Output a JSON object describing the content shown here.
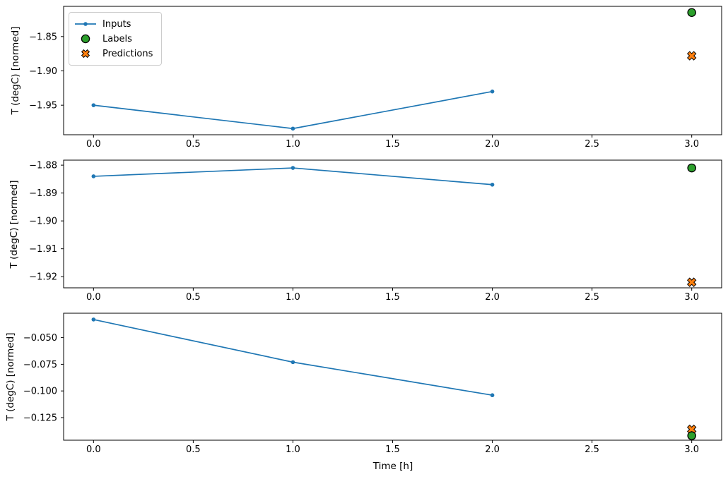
{
  "figure": {
    "background": "#ffffff",
    "axes_edge_color": "#000000",
    "xlabel": "Time [h]"
  },
  "legend": {
    "position": "upper left",
    "entries": [
      {
        "label": "Inputs",
        "marker": "line-with-dot",
        "color": "#1f77b4"
      },
      {
        "label": "Labels",
        "marker": "filled-circle",
        "color": "#2ca02c",
        "edge_color": "#000000"
      },
      {
        "label": "Predictions",
        "marker": "filled-x",
        "color": "#ff7f0e",
        "edge_color": "#000000"
      }
    ]
  },
  "chart_data": [
    {
      "type": "line",
      "title": "",
      "ylabel": "T (degC) [normed]",
      "xlabel": "",
      "grid": false,
      "xlim": [
        -0.15,
        3.15
      ],
      "ylim": [
        -1.993,
        -1.806
      ],
      "xticks": [
        {
          "v": 0.0,
          "label": "0.0"
        },
        {
          "v": 0.5,
          "label": "0.5"
        },
        {
          "v": 1.0,
          "label": "1.0"
        },
        {
          "v": 1.5,
          "label": "1.5"
        },
        {
          "v": 2.0,
          "label": "2.0"
        },
        {
          "v": 2.5,
          "label": "2.5"
        },
        {
          "v": 3.0,
          "label": "3.0"
        }
      ],
      "yticks": [
        {
          "v": -1.85,
          "label": "−1.85"
        },
        {
          "v": -1.9,
          "label": "−1.90"
        },
        {
          "v": -1.95,
          "label": "−1.95"
        }
      ],
      "series": [
        {
          "name": "Inputs",
          "color": "#1f77b4",
          "marker": "dot",
          "line": true,
          "x": [
            0,
            1,
            2
          ],
          "y": [
            -1.95,
            -1.984,
            -1.93
          ]
        }
      ],
      "points": [
        {
          "name": "Labels",
          "marker": "circle",
          "color": "#2ca02c",
          "x": 3,
          "y": -1.815
        },
        {
          "name": "Predictions",
          "marker": "X",
          "color": "#ff7f0e",
          "x": 3,
          "y": -1.878
        }
      ]
    },
    {
      "type": "line",
      "title": "",
      "ylabel": "T (degC) [normed]",
      "xlabel": "",
      "grid": false,
      "xlim": [
        -0.15,
        3.15
      ],
      "ylim": [
        -1.924,
        -1.8782
      ],
      "xticks": [
        {
          "v": 0.0,
          "label": "0.0"
        },
        {
          "v": 0.5,
          "label": "0.5"
        },
        {
          "v": 1.0,
          "label": "1.0"
        },
        {
          "v": 1.5,
          "label": "1.5"
        },
        {
          "v": 2.0,
          "label": "2.0"
        },
        {
          "v": 2.5,
          "label": "2.5"
        },
        {
          "v": 3.0,
          "label": "3.0"
        }
      ],
      "yticks": [
        {
          "v": -1.88,
          "label": "−1.88"
        },
        {
          "v": -1.89,
          "label": "−1.89"
        },
        {
          "v": -1.9,
          "label": "−1.90"
        },
        {
          "v": -1.91,
          "label": "−1.91"
        },
        {
          "v": -1.92,
          "label": "−1.92"
        }
      ],
      "series": [
        {
          "name": "Inputs",
          "color": "#1f77b4",
          "marker": "dot",
          "line": true,
          "x": [
            0,
            1,
            2
          ],
          "y": [
            -1.884,
            -1.881,
            -1.887
          ]
        }
      ],
      "points": [
        {
          "name": "Labels",
          "marker": "circle",
          "color": "#2ca02c",
          "x": 3,
          "y": -1.881
        },
        {
          "name": "Predictions",
          "marker": "X",
          "color": "#ff7f0e",
          "x": 3,
          "y": -1.922
        }
      ]
    },
    {
      "type": "line",
      "title": "",
      "ylabel": "T (degC) [normed]",
      "xlabel": "Time [h]",
      "grid": false,
      "xlim": [
        -0.15,
        3.15
      ],
      "ylim": [
        -0.1462,
        -0.0271
      ],
      "xticks": [
        {
          "v": 0.0,
          "label": "0.0"
        },
        {
          "v": 0.5,
          "label": "0.5"
        },
        {
          "v": 1.0,
          "label": "1.0"
        },
        {
          "v": 1.5,
          "label": "1.5"
        },
        {
          "v": 2.0,
          "label": "2.0"
        },
        {
          "v": 2.5,
          "label": "2.5"
        },
        {
          "v": 3.0,
          "label": "3.0"
        }
      ],
      "yticks": [
        {
          "v": -0.05,
          "label": "−0.050"
        },
        {
          "v": -0.075,
          "label": "−0.075"
        },
        {
          "v": -0.1,
          "label": "−0.100"
        },
        {
          "v": -0.125,
          "label": "−0.125"
        }
      ],
      "series": [
        {
          "name": "Inputs",
          "color": "#1f77b4",
          "marker": "dot",
          "line": true,
          "x": [
            0,
            1,
            2
          ],
          "y": [
            -0.033,
            -0.073,
            -0.104
          ]
        }
      ],
      "points": [
        {
          "name": "Labels",
          "marker": "circle",
          "color": "#2ca02c",
          "x": 3,
          "y": -0.142
        },
        {
          "name": "Predictions",
          "marker": "X",
          "color": "#ff7f0e",
          "x": 3,
          "y": -0.136
        }
      ]
    }
  ]
}
